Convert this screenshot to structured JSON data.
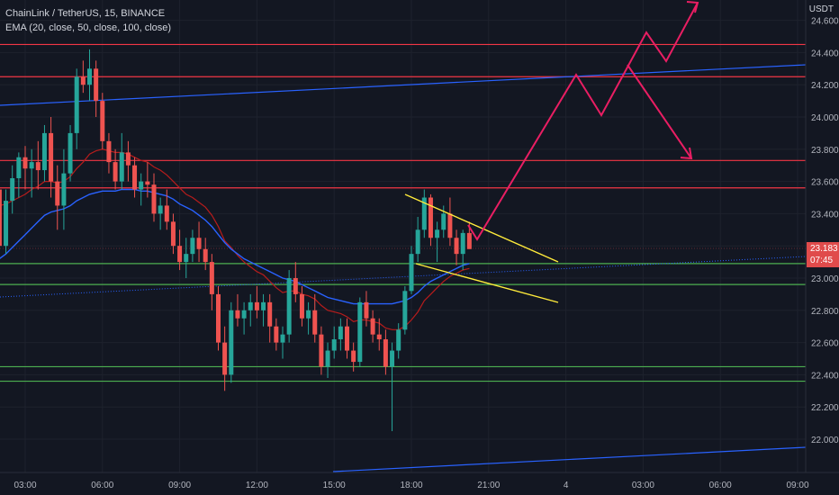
{
  "legend": {
    "symbol": "ChainLink / TetherUS, 15, BINANCE",
    "indicator": "EMA (20, close, 50, close, 100, close)"
  },
  "currency_label": "USDT",
  "last_price": "23.183",
  "countdown": "07:45",
  "colors": {
    "background": "#131722",
    "up": "#26a69a",
    "down": "#ef5350",
    "ema_fast": "#b71c1c",
    "ema_slow": "#2962ff",
    "resistance": "#f23645",
    "support": "#4caf50",
    "trend_blue": "#2962ff",
    "wedge": "#ffeb3b",
    "projection": "#e91e63"
  },
  "chart_data": {
    "type": "candlestick",
    "time_axis_labels": [
      "03:00",
      "06:00",
      "09:00",
      "12:00",
      "15:00",
      "18:00",
      "21:00",
      "4",
      "03:00",
      "06:00",
      "09:00"
    ],
    "price_axis_labels": [
      "24.600",
      "24.400",
      "24.200",
      "24.000",
      "23.800",
      "23.600",
      "23.400",
      "23.200",
      "23.000",
      "22.800",
      "22.600",
      "22.400",
      "22.200",
      "22.000"
    ],
    "ylim": [
      21.8,
      24.7
    ],
    "candle_interval_minutes": 15,
    "first_candle_time": "02:00",
    "horizontal_levels": {
      "resistance": [
        24.45,
        24.25,
        23.73,
        23.56
      ],
      "support": [
        23.09,
        22.96,
        22.45,
        22.36
      ]
    },
    "candles": [
      [
        23.55,
        23.6,
        23.1,
        23.2
      ],
      [
        23.2,
        23.55,
        23.15,
        23.48
      ],
      [
        23.48,
        23.7,
        23.4,
        23.62
      ],
      [
        23.62,
        23.78,
        23.5,
        23.75
      ],
      [
        23.75,
        23.82,
        23.55,
        23.68
      ],
      [
        23.68,
        23.8,
        23.5,
        23.72
      ],
      [
        23.72,
        23.85,
        23.55,
        23.67
      ],
      [
        23.67,
        23.95,
        23.6,
        23.9
      ],
      [
        23.9,
        24.0,
        23.5,
        23.6
      ],
      [
        23.6,
        23.7,
        23.3,
        23.45
      ],
      [
        23.45,
        23.8,
        23.3,
        23.65
      ],
      [
        23.65,
        23.95,
        23.6,
        23.9
      ],
      [
        23.9,
        24.3,
        23.8,
        24.25
      ],
      [
        24.25,
        24.35,
        24.15,
        24.2
      ],
      [
        24.2,
        24.42,
        24.1,
        24.3
      ],
      [
        24.3,
        24.35,
        24.0,
        24.1
      ],
      [
        24.1,
        24.15,
        23.8,
        23.85
      ],
      [
        23.85,
        23.9,
        23.65,
        23.72
      ],
      [
        23.72,
        23.8,
        23.55,
        23.6
      ],
      [
        23.6,
        23.9,
        23.55,
        23.78
      ],
      [
        23.78,
        23.85,
        23.6,
        23.7
      ],
      [
        23.7,
        23.75,
        23.5,
        23.55
      ],
      [
        23.55,
        23.65,
        23.45,
        23.6
      ],
      [
        23.6,
        23.72,
        23.5,
        23.58
      ],
      [
        23.58,
        23.65,
        23.35,
        23.4
      ],
      [
        23.4,
        23.5,
        23.3,
        23.45
      ],
      [
        23.45,
        23.55,
        23.3,
        23.35
      ],
      [
        23.35,
        23.4,
        23.15,
        23.2
      ],
      [
        23.2,
        23.3,
        23.05,
        23.1
      ],
      [
        23.1,
        23.25,
        23.0,
        23.15
      ],
      [
        23.15,
        23.3,
        23.1,
        23.25
      ],
      [
        23.25,
        23.35,
        23.1,
        23.18
      ],
      [
        23.18,
        23.25,
        23.05,
        23.1
      ],
      [
        23.1,
        23.15,
        22.8,
        22.9
      ],
      [
        22.9,
        22.95,
        22.55,
        22.6
      ],
      [
        22.6,
        22.7,
        22.3,
        22.4
      ],
      [
        22.4,
        22.85,
        22.35,
        22.8
      ],
      [
        22.8,
        22.9,
        22.7,
        22.75
      ],
      [
        22.75,
        22.85,
        22.65,
        22.8
      ],
      [
        22.8,
        22.9,
        22.7,
        22.85
      ],
      [
        22.85,
        22.95,
        22.75,
        22.8
      ],
      [
        22.8,
        22.9,
        22.7,
        22.85
      ],
      [
        22.85,
        22.9,
        22.6,
        22.7
      ],
      [
        22.7,
        22.75,
        22.55,
        22.6
      ],
      [
        22.6,
        22.7,
        22.5,
        22.65
      ],
      [
        22.65,
        23.05,
        22.6,
        23.0
      ],
      [
        23.0,
        23.1,
        22.85,
        22.9
      ],
      [
        22.9,
        22.95,
        22.7,
        22.75
      ],
      [
        22.75,
        22.85,
        22.65,
        22.8
      ],
      [
        22.8,
        22.9,
        22.6,
        22.65
      ],
      [
        22.65,
        22.7,
        22.4,
        22.45
      ],
      [
        22.45,
        22.6,
        22.38,
        22.55
      ],
      [
        22.55,
        22.7,
        22.5,
        22.62
      ],
      [
        22.62,
        22.75,
        22.55,
        22.7
      ],
      [
        22.7,
        22.75,
        22.5,
        22.55
      ],
      [
        22.55,
        22.6,
        22.42,
        22.48
      ],
      [
        22.48,
        22.88,
        22.45,
        22.85
      ],
      [
        22.85,
        22.92,
        22.7,
        22.75
      ],
      [
        22.75,
        22.8,
        22.6,
        22.65
      ],
      [
        22.65,
        22.75,
        22.55,
        22.62
      ],
      [
        22.62,
        22.68,
        22.4,
        22.45
      ],
      [
        22.45,
        22.6,
        22.05,
        22.55
      ],
      [
        22.55,
        22.72,
        22.5,
        22.68
      ],
      [
        22.68,
        22.95,
        22.65,
        22.92
      ],
      [
        22.92,
        23.2,
        22.9,
        23.15
      ],
      [
        23.15,
        23.38,
        23.1,
        23.3
      ],
      [
        23.3,
        23.55,
        23.25,
        23.5
      ],
      [
        23.5,
        23.52,
        23.2,
        23.25
      ],
      [
        23.25,
        23.35,
        23.1,
        23.3
      ],
      [
        23.3,
        23.45,
        23.25,
        23.4
      ],
      [
        23.4,
        23.5,
        23.2,
        23.25
      ],
      [
        23.25,
        23.3,
        23.08,
        23.15
      ],
      [
        23.15,
        23.3,
        23.05,
        23.28
      ],
      [
        23.28,
        23.35,
        23.2,
        23.18
      ]
    ],
    "ema_fast": [
      23.45,
      23.46,
      23.48,
      23.5,
      23.52,
      23.55,
      23.57,
      23.6,
      23.6,
      23.59,
      23.6,
      23.63,
      23.68,
      23.72,
      23.77,
      23.79,
      23.8,
      23.79,
      23.78,
      23.78,
      23.77,
      23.75,
      23.73,
      23.72,
      23.69,
      23.67,
      23.64,
      23.6,
      23.56,
      23.52,
      23.5,
      23.47,
      23.44,
      23.39,
      23.32,
      23.23,
      23.19,
      23.14,
      23.1,
      23.07,
      23.04,
      23.02,
      22.98,
      22.94,
      22.91,
      22.92,
      22.92,
      22.9,
      22.89,
      22.87,
      22.83,
      22.8,
      22.79,
      22.78,
      22.76,
      22.73,
      22.74,
      22.74,
      22.73,
      22.72,
      22.69,
      22.68,
      22.68,
      22.7,
      22.74,
      22.79,
      22.86,
      22.9,
      22.94,
      22.98,
      23.01,
      23.03,
      23.05,
      23.06
    ],
    "ema_slow": [
      23.12,
      23.15,
      23.19,
      23.23,
      23.27,
      23.31,
      23.35,
      23.39,
      23.41,
      23.42,
      23.43,
      23.45,
      23.48,
      23.5,
      23.52,
      23.53,
      23.54,
      23.54,
      23.54,
      23.55,
      23.55,
      23.55,
      23.54,
      23.54,
      23.53,
      23.52,
      23.51,
      23.49,
      23.46,
      23.44,
      23.42,
      23.39,
      23.36,
      23.32,
      23.27,
      23.22,
      23.18,
      23.15,
      23.12,
      23.1,
      23.08,
      23.06,
      23.04,
      23.02,
      23.0,
      22.99,
      22.98,
      22.96,
      22.94,
      22.92,
      22.9,
      22.88,
      22.87,
      22.86,
      22.85,
      22.84,
      22.84,
      22.84,
      22.84,
      22.84,
      22.84,
      22.84,
      22.85,
      22.86,
      22.88,
      22.91,
      22.95,
      22.98,
      23.0,
      23.02,
      23.04,
      23.06,
      23.08,
      23.09
    ]
  }
}
